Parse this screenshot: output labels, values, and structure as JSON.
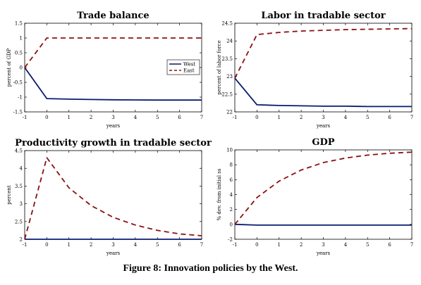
{
  "caption": "Figure 8: Innovation policies by the West.",
  "colors": {
    "west": "#0a1a6e",
    "east": "#8b1010",
    "axis": "#000000"
  },
  "chart_data": [
    {
      "type": "line",
      "title": "Trade balance",
      "xlabel": "years",
      "ylabel": "percent of GDP",
      "xlim": [
        -1,
        7
      ],
      "ylim": [
        -1.5,
        1.5
      ],
      "xticks": [
        -1,
        0,
        1,
        2,
        3,
        4,
        5,
        6,
        7
      ],
      "yticks": [
        -1.5,
        -1,
        -0.5,
        0,
        0.5,
        1,
        1.5
      ],
      "ytick_labels": [
        "-1.5",
        "-1",
        "-0.5",
        "0",
        "0.5",
        "1",
        "1.5"
      ],
      "x": [
        -1,
        0,
        1,
        2,
        3,
        4,
        5,
        6,
        7
      ],
      "legend": {
        "placement": "center-right",
        "entries": [
          "West",
          "East"
        ]
      },
      "series": [
        {
          "name": "West",
          "values": [
            0,
            -1.05,
            -1.07,
            -1.08,
            -1.09,
            -1.095,
            -1.1,
            -1.1,
            -1.1
          ]
        },
        {
          "name": "East",
          "values": [
            0,
            1,
            1,
            1,
            1,
            1,
            1,
            1,
            1
          ]
        }
      ]
    },
    {
      "type": "line",
      "title": "Labor in tradable sector",
      "xlabel": "years",
      "ylabel": "percent of labor force",
      "xlim": [
        -1,
        7
      ],
      "ylim": [
        22,
        24.5
      ],
      "xticks": [
        -1,
        0,
        1,
        2,
        3,
        4,
        5,
        6,
        7
      ],
      "yticks": [
        22,
        22.5,
        23,
        23.5,
        24,
        24.5
      ],
      "ytick_labels": [
        "22",
        "22.5",
        "23",
        "23.5",
        "24",
        "24.5"
      ],
      "x": [
        -1,
        0,
        1,
        2,
        3,
        4,
        5,
        6,
        7
      ],
      "series": [
        {
          "name": "West",
          "values": [
            22.95,
            22.2,
            22.18,
            22.17,
            22.16,
            22.16,
            22.15,
            22.15,
            22.15
          ]
        },
        {
          "name": "East",
          "values": [
            22.95,
            24.18,
            24.24,
            24.28,
            24.3,
            24.32,
            24.33,
            24.34,
            24.35
          ]
        }
      ]
    },
    {
      "type": "line",
      "title": "Productivity growth in tradable sector",
      "xlabel": "years",
      "ylabel": "percent",
      "xlim": [
        -1,
        7
      ],
      "ylim": [
        2,
        4.5
      ],
      "xticks": [
        -1,
        0,
        1,
        2,
        3,
        4,
        5,
        6,
        7
      ],
      "yticks": [
        2,
        2.5,
        3,
        3.5,
        4,
        4.5
      ],
      "ytick_labels": [
        "2",
        "2.5",
        "3",
        "3.5",
        "4",
        "4.5"
      ],
      "x": [
        -1,
        0,
        1,
        2,
        3,
        4,
        5,
        6,
        7
      ],
      "series": [
        {
          "name": "West",
          "values": [
            2,
            2,
            2,
            2,
            2,
            2,
            2,
            2,
            2
          ]
        },
        {
          "name": "East",
          "values": [
            2,
            4.3,
            3.45,
            2.95,
            2.62,
            2.4,
            2.25,
            2.15,
            2.1
          ]
        }
      ]
    },
    {
      "type": "line",
      "title": "GDP",
      "xlabel": "years",
      "ylabel": "% dev. from initial ss",
      "xlim": [
        -1,
        7
      ],
      "ylim": [
        -2,
        10
      ],
      "xticks": [
        -1,
        0,
        1,
        2,
        3,
        4,
        5,
        6,
        7
      ],
      "yticks": [
        -2,
        0,
        2,
        4,
        6,
        8,
        10
      ],
      "ytick_labels": [
        "-2",
        "0",
        "2",
        "4",
        "6",
        "8",
        "10"
      ],
      "x": [
        -1,
        0,
        1,
        2,
        3,
        4,
        5,
        6,
        7
      ],
      "series": [
        {
          "name": "West",
          "values": [
            0,
            -0.1,
            -0.1,
            -0.1,
            -0.1,
            -0.1,
            -0.1,
            -0.1,
            -0.1
          ]
        },
        {
          "name": "East",
          "values": [
            0,
            3.6,
            5.8,
            7.3,
            8.3,
            8.9,
            9.3,
            9.55,
            9.7
          ]
        }
      ]
    }
  ]
}
